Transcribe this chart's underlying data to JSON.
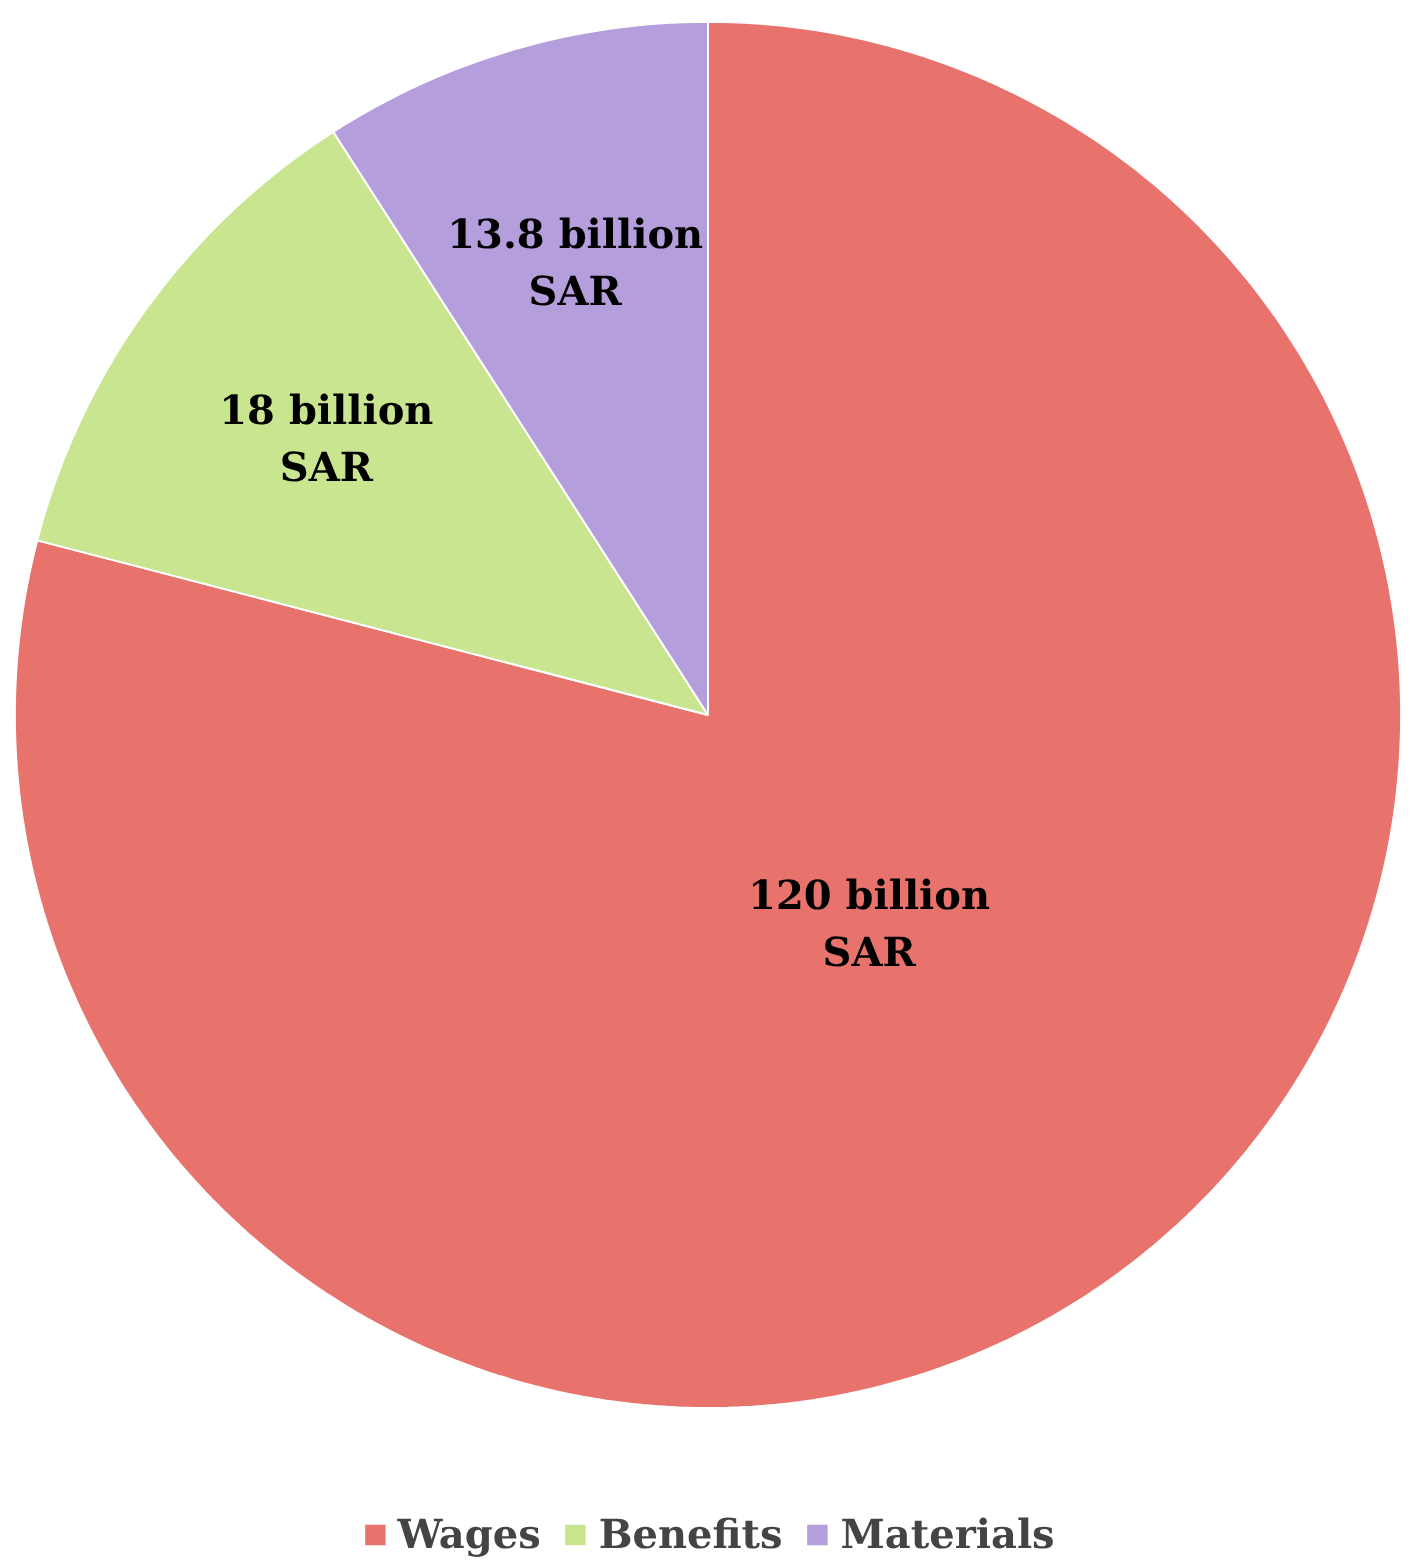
{
  "chart_data": {
    "type": "pie",
    "categories": [
      "Wages",
      "Benefits",
      "Materials"
    ],
    "values": [
      120,
      18,
      13.8
    ],
    "colors": [
      "#e8736c",
      "#c9e58f",
      "#b49fdc"
    ],
    "value_labels": [
      "120 billion\nSAR",
      "18 billion\nSAR",
      "13.8 billion\nSAR"
    ],
    "legend": "bottom"
  }
}
